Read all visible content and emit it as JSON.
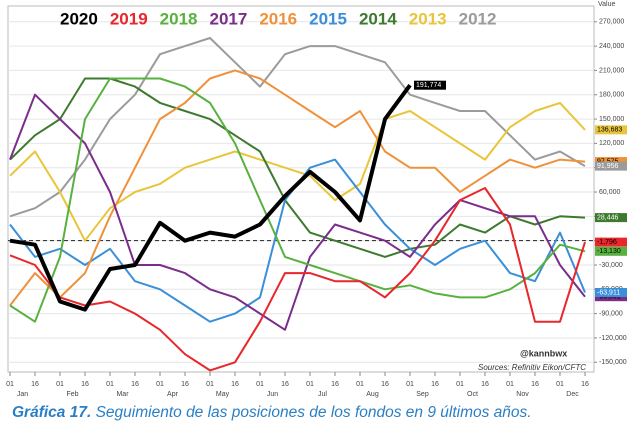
{
  "chart_data": {
    "type": "line",
    "y_axis_label": "Value",
    "annotations": [
      "@kannbwx",
      "Sources: Refinitiv Eikon/CFTC"
    ],
    "caption_label": "Gráfica 17.",
    "caption_text": "Seguimiento de las posiciones de los fondos en 9 últimos años.",
    "categories": [
      "01",
      "16",
      "01",
      "16",
      "01",
      "16",
      "01",
      "16",
      "01",
      "16",
      "01",
      "16",
      "01",
      "16",
      "01",
      "16",
      "01",
      "16",
      "01",
      "16",
      "01",
      "16",
      "01",
      "16"
    ],
    "months": [
      "Jan",
      "Feb",
      "Mar",
      "Apr",
      "May",
      "Jun",
      "Jul",
      "Aug",
      "Sep",
      "Oct",
      "Nov",
      "Dec"
    ],
    "ylim": [
      -162000,
      287000
    ],
    "yticks": [
      {
        "value": -150000,
        "label": "-150,000"
      },
      {
        "value": -120000,
        "label": "-120,000"
      },
      {
        "value": -90000,
        "label": "-90,000"
      },
      {
        "value": -60000,
        "label": "-60,000"
      },
      {
        "value": -30000,
        "label": "-30,000"
      },
      0,
      {
        "value": 30000,
        "label": "30,000"
      },
      {
        "value": 60000,
        "label": "60,000"
      },
      {
        "value": 90000,
        "label": "90,000"
      },
      {
        "value": 120000,
        "label": "120,000"
      },
      {
        "value": 150000,
        "label": "150,000"
      },
      {
        "value": 180000,
        "label": "180,000"
      },
      {
        "value": 210000,
        "label": "210,000"
      },
      {
        "value": 240000,
        "label": "240,000"
      },
      {
        "value": 270000,
        "label": "270,000"
      }
    ],
    "reference_line": 0,
    "series": [
      {
        "name": "2020",
        "color": "#000000",
        "width": 4,
        "end_label": "191,774",
        "values": [
          0,
          -5000,
          -75000,
          -85000,
          -35000,
          -30000,
          22000,
          0,
          10000,
          5000,
          20000,
          55000,
          85000,
          60000,
          25000,
          150000,
          191774,
          null,
          null,
          null,
          null,
          null,
          null,
          null
        ]
      },
      {
        "name": "2019",
        "color": "#e8262b",
        "width": 2,
        "end_label": "-1,796",
        "values": [
          -18000,
          -30000,
          -70000,
          -80000,
          -75000,
          -90000,
          -110000,
          -140000,
          -160000,
          -150000,
          -100000,
          -40000,
          -40000,
          -50000,
          -50000,
          -70000,
          -40000,
          0,
          50000,
          65000,
          20000,
          -100000,
          -100000,
          -1796
        ]
      },
      {
        "name": "2018",
        "color": "#58b13f",
        "width": 2,
        "end_label": "-13,130",
        "values": [
          -80000,
          -100000,
          -20000,
          150000,
          200000,
          200000,
          200000,
          190000,
          170000,
          120000,
          50000,
          -20000,
          -30000,
          -40000,
          -50000,
          -60000,
          -55000,
          -65000,
          -70000,
          -70000,
          -60000,
          -40000,
          -5000,
          -13130
        ]
      },
      {
        "name": "2017",
        "color": "#7b2d8b",
        "width": 2,
        "end_label": "-69,091",
        "values": [
          100000,
          180000,
          150000,
          120000,
          60000,
          -30000,
          -30000,
          -40000,
          -60000,
          -70000,
          -90000,
          -110000,
          -20000,
          20000,
          10000,
          0,
          -20000,
          20000,
          50000,
          40000,
          30000,
          30000,
          -30000,
          -69091
        ]
      },
      {
        "name": "2016",
        "color": "#f0913a",
        "width": 2,
        "end_label": "97,575",
        "values": [
          -80000,
          -40000,
          -70000,
          -40000,
          30000,
          90000,
          150000,
          170000,
          200000,
          210000,
          200000,
          180000,
          160000,
          140000,
          160000,
          110000,
          90000,
          90000,
          60000,
          80000,
          100000,
          90000,
          100000,
          97575
        ]
      },
      {
        "name": "2015",
        "color": "#3a8fd9",
        "width": 2,
        "end_label": "-63,911",
        "values": [
          20000,
          -20000,
          -10000,
          -30000,
          -10000,
          -50000,
          -60000,
          -80000,
          -100000,
          -90000,
          -70000,
          50000,
          90000,
          100000,
          60000,
          20000,
          -10000,
          -30000,
          -10000,
          0,
          -40000,
          -50000,
          10000,
          -63911
        ]
      },
      {
        "name": "2014",
        "color": "#3d7a2e",
        "width": 2,
        "end_label": "28,446",
        "values": [
          100000,
          130000,
          150000,
          200000,
          200000,
          190000,
          170000,
          160000,
          150000,
          130000,
          110000,
          50000,
          10000,
          0,
          -10000,
          -20000,
          -10000,
          -5000,
          20000,
          10000,
          30000,
          20000,
          30000,
          28446
        ]
      },
      {
        "name": "2013",
        "color": "#e8c53a",
        "width": 2,
        "end_label": "136,683",
        "values": [
          80000,
          110000,
          60000,
          0,
          40000,
          60000,
          70000,
          90000,
          100000,
          110000,
          100000,
          90000,
          80000,
          50000,
          70000,
          150000,
          160000,
          140000,
          120000,
          100000,
          140000,
          160000,
          170000,
          136683
        ]
      },
      {
        "name": "2012",
        "color": "#9b9b9b",
        "width": 2,
        "end_label": "91,956",
        "values": [
          30000,
          40000,
          60000,
          100000,
          150000,
          180000,
          230000,
          240000,
          250000,
          220000,
          190000,
          230000,
          240000,
          240000,
          230000,
          220000,
          180000,
          170000,
          160000,
          160000,
          130000,
          100000,
          110000,
          91956
        ]
      }
    ]
  }
}
